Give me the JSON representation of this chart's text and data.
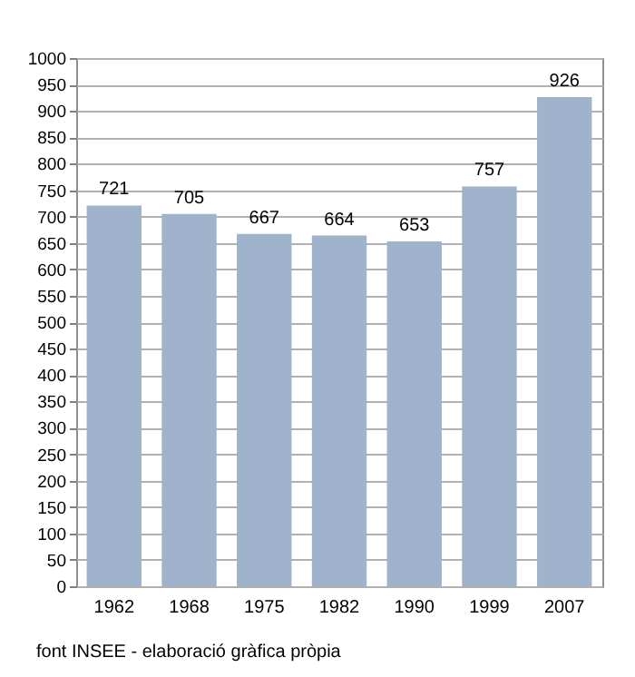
{
  "chart_data": {
    "type": "bar",
    "categories": [
      "1962",
      "1968",
      "1975",
      "1982",
      "1990",
      "1999",
      "2007"
    ],
    "values": [
      721,
      705,
      667,
      664,
      653,
      757,
      926
    ],
    "color": "#9fb4cc",
    "data_labels": true,
    "ylim": [
      0,
      1000
    ],
    "yticks": [
      0,
      50,
      100,
      150,
      200,
      250,
      300,
      350,
      400,
      450,
      500,
      550,
      600,
      650,
      700,
      750,
      800,
      850,
      900,
      950,
      1000
    ],
    "grid": "y",
    "annotations": [
      "font INSEE - elaboració gràfica pròpia"
    ]
  }
}
